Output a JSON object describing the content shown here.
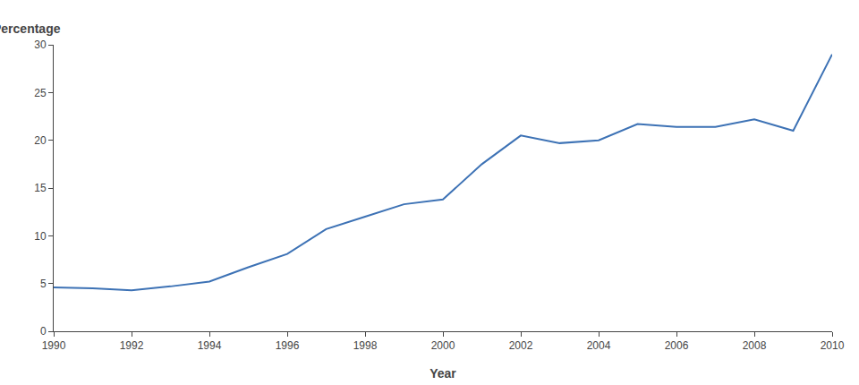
{
  "chart_data": {
    "type": "line",
    "x": [
      1990,
      1991,
      1992,
      1993,
      1994,
      1995,
      1996,
      1997,
      1998,
      1999,
      2000,
      2001,
      2002,
      2003,
      2004,
      2005,
      2006,
      2007,
      2008,
      2009,
      2010
    ],
    "values": [
      4.6,
      4.5,
      4.3,
      4.7,
      5.2,
      6.7,
      8.1,
      10.7,
      12.0,
      13.3,
      13.8,
      17.5,
      20.5,
      19.7,
      20.0,
      21.7,
      21.4,
      21.4,
      22.2,
      21.0,
      29.0
    ],
    "color": "#3d72b5",
    "xlabel": "Year",
    "ylabel": "Percentage",
    "xlim": [
      1990,
      2010
    ],
    "ylim": [
      0,
      30
    ],
    "xticks": [
      1990,
      1992,
      1994,
      1996,
      1998,
      2000,
      2002,
      2004,
      2006,
      2008,
      2010
    ],
    "yticks": [
      0,
      5,
      10,
      15,
      20,
      25,
      30
    ],
    "grid": false
  }
}
